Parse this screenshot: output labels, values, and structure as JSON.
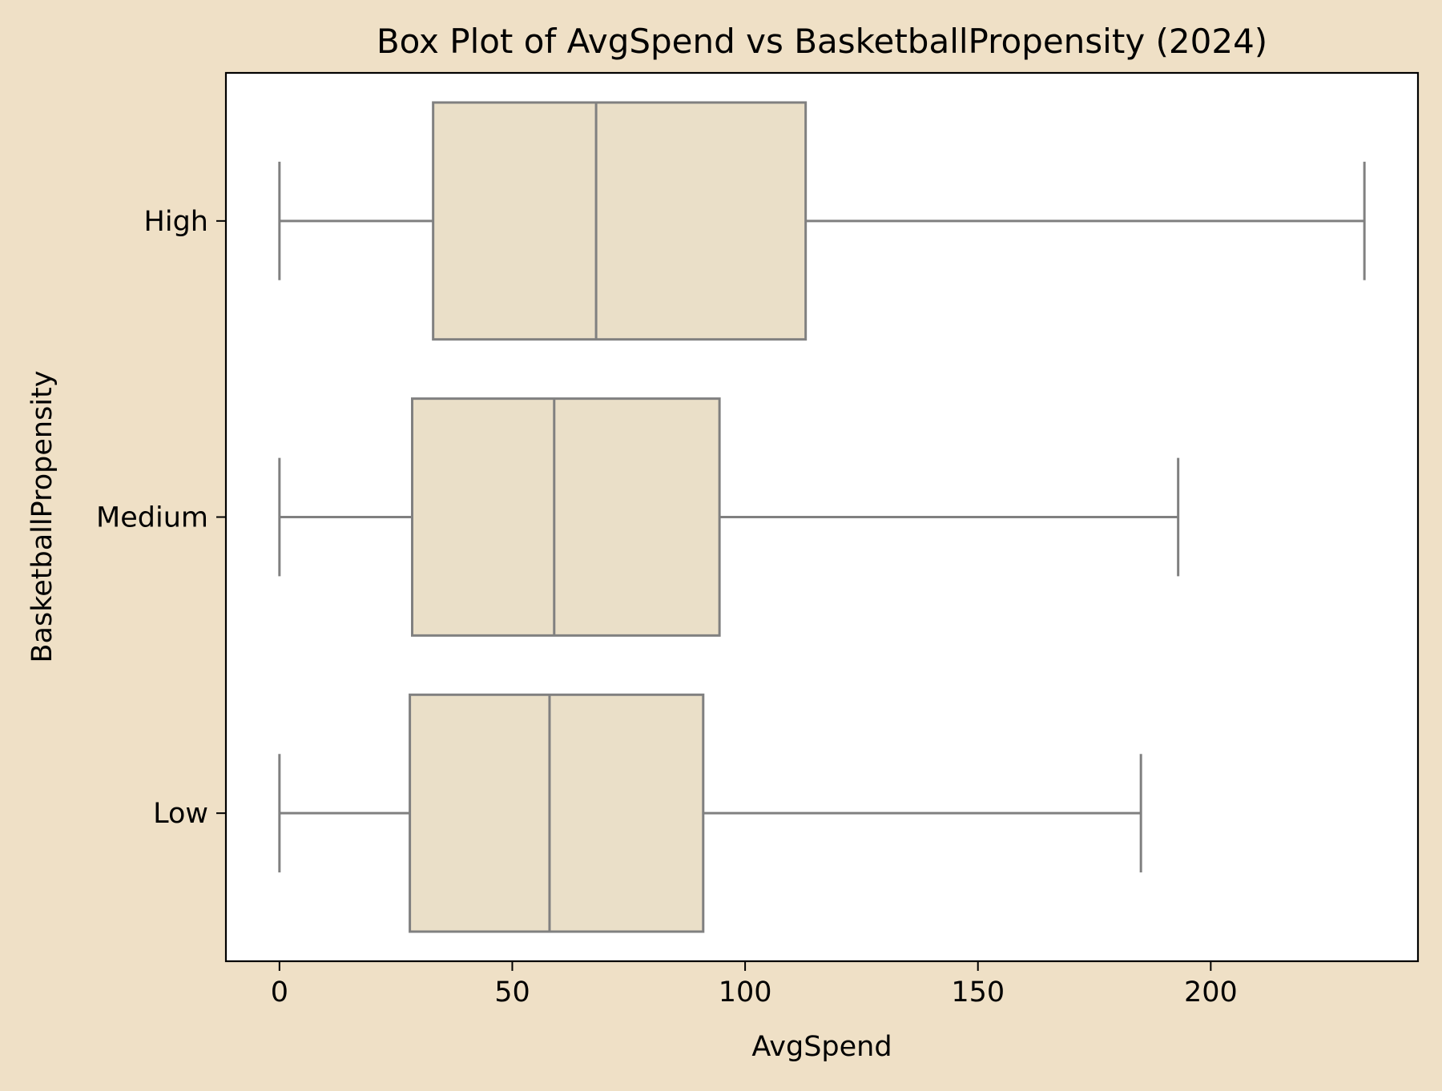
{
  "chart_data": {
    "type": "box",
    "orientation": "horizontal",
    "title": "Box Plot of AvgSpend vs BasketballPropensity (2024)",
    "xlabel": "AvgSpend",
    "ylabel": "BasketballPropensity",
    "xlim": [
      -11.5,
      244.5
    ],
    "xticks": [
      0,
      50,
      100,
      150,
      200
    ],
    "categories": [
      "High",
      "Medium",
      "Low"
    ],
    "boxes": [
      {
        "category": "High",
        "whisker_low": 0,
        "q1": 33,
        "median": 68,
        "q3": 113,
        "whisker_high": 233
      },
      {
        "category": "Medium",
        "whisker_low": 0,
        "q1": 28.5,
        "median": 59,
        "q3": 94.5,
        "whisker_high": 193
      },
      {
        "category": "Low",
        "whisker_low": 0,
        "q1": 28,
        "median": 58,
        "q3": 91,
        "whisker_high": 185
      }
    ],
    "grid": false,
    "colors": {
      "figure_background": "#efe0c6",
      "plot_background": "#ffffff",
      "box_fill": "#eadfc8",
      "box_edge": "#808080",
      "axis": "#000000"
    }
  }
}
